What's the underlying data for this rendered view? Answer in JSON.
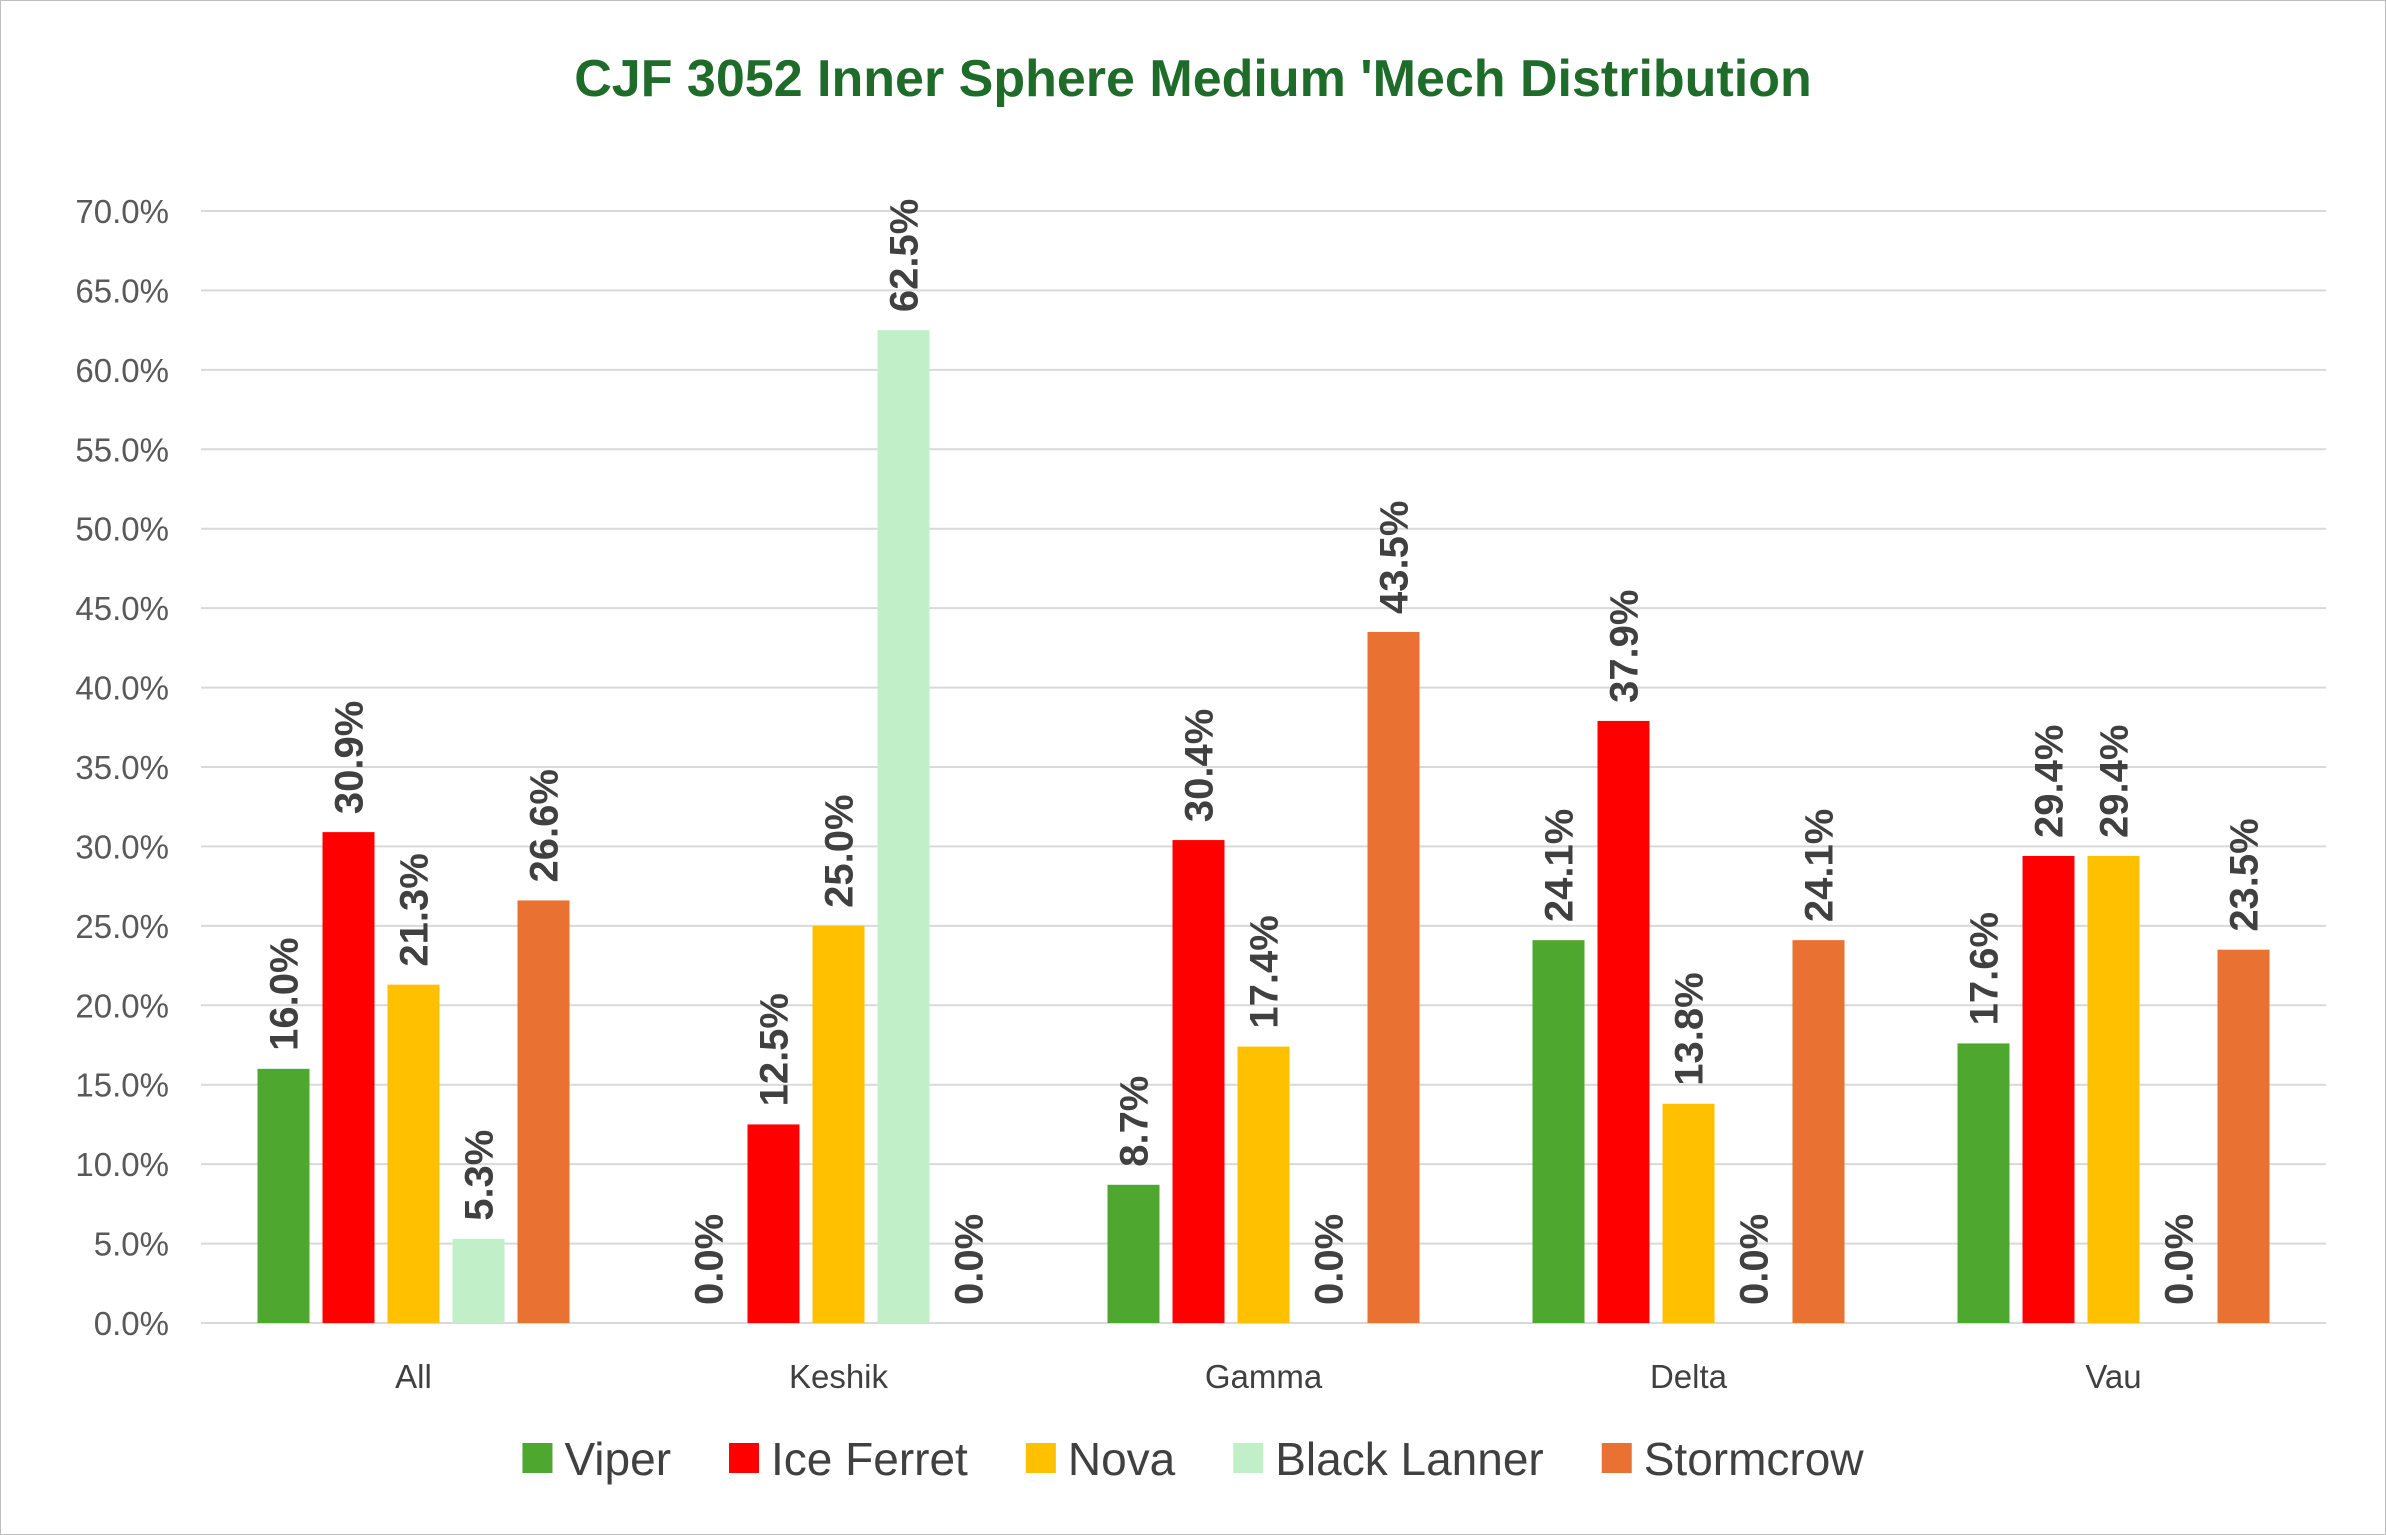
{
  "chart_data": {
    "type": "bar",
    "title": "CJF 3052 Inner Sphere Medium 'Mech Distribution",
    "categories": [
      "All",
      "Keshik",
      "Gamma",
      "Delta",
      "Vau"
    ],
    "series": [
      {
        "name": "Viper",
        "color": "#4ea72e",
        "values": [
          16.0,
          0.0,
          8.7,
          24.1,
          17.6
        ]
      },
      {
        "name": "Ice Ferret",
        "color": "#ff0000",
        "values": [
          30.9,
          12.5,
          30.4,
          37.9,
          29.4
        ]
      },
      {
        "name": "Nova",
        "color": "#ffc000",
        "values": [
          21.3,
          25.0,
          17.4,
          13.8,
          29.4
        ]
      },
      {
        "name": "Black Lanner",
        "color": "#c1f0c8",
        "values": [
          5.3,
          62.5,
          0.0,
          0.0,
          0.0
        ]
      },
      {
        "name": "Stormcrow",
        "color": "#e97132",
        "values": [
          26.6,
          0.0,
          43.5,
          24.1,
          23.5
        ]
      }
    ],
    "ylim": [
      0,
      70
    ],
    "yticks": [
      0,
      5,
      10,
      15,
      20,
      25,
      30,
      35,
      40,
      45,
      50,
      55,
      60,
      65,
      70
    ],
    "value_format": "percent-1dp",
    "grid": true,
    "legend": "bottom",
    "xlabel": "",
    "ylabel": ""
  }
}
